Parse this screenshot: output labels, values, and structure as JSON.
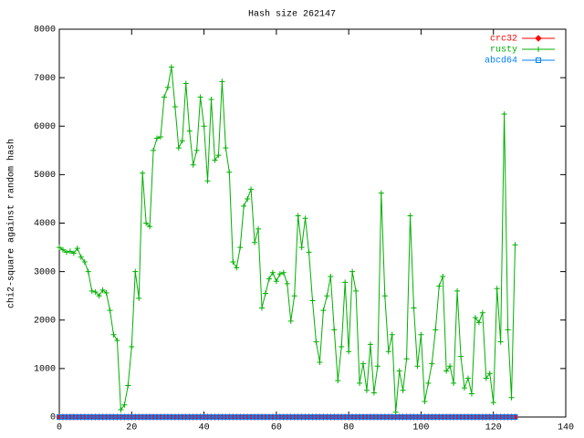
{
  "chart_data": {
    "type": "line",
    "title": "Hash size 262147",
    "y_label": "chi2-square against random hash",
    "x": [
      0,
      1,
      2,
      3,
      4,
      5,
      6,
      7,
      8,
      9,
      10,
      11,
      12,
      13,
      14,
      15,
      16,
      17,
      18,
      19,
      20,
      21,
      22,
      23,
      24,
      25,
      26,
      27,
      28,
      29,
      30,
      31,
      32,
      33,
      34,
      35,
      36,
      37,
      38,
      39,
      40,
      41,
      42,
      43,
      44,
      45,
      46,
      47,
      48,
      49,
      50,
      51,
      52,
      53,
      54,
      55,
      56,
      57,
      58,
      59,
      60,
      61,
      62,
      63,
      64,
      65,
      66,
      67,
      68,
      69,
      70,
      71,
      72,
      73,
      74,
      75,
      76,
      77,
      78,
      79,
      80,
      81,
      82,
      83,
      84,
      85,
      86,
      87,
      88,
      89,
      90,
      91,
      92,
      93,
      94,
      95,
      96,
      97,
      98,
      99,
      100,
      101,
      102,
      103,
      104,
      105,
      106,
      107,
      108,
      109,
      110,
      111,
      112,
      113,
      114,
      115,
      116,
      117,
      118,
      119,
      120,
      121,
      122,
      123,
      124,
      125,
      126
    ],
    "series": [
      {
        "name": "crc32",
        "color": "#ff0000",
        "marker": "diamond",
        "values": [
          0,
          0,
          0,
          0,
          0,
          0,
          0,
          0,
          0,
          0,
          0,
          0,
          0,
          0,
          0,
          0,
          0,
          0,
          0,
          0,
          0,
          0,
          0,
          0,
          0,
          0,
          0,
          0,
          0,
          0,
          0,
          0,
          0,
          0,
          0,
          0,
          0,
          0,
          0,
          0,
          0,
          0,
          0,
          0,
          0,
          0,
          0,
          0,
          0,
          0,
          0,
          0,
          0,
          0,
          0,
          0,
          0,
          0,
          0,
          0,
          0,
          0,
          0,
          0,
          0,
          0,
          0,
          0,
          0,
          0,
          0,
          0,
          0,
          0,
          0,
          0,
          0,
          0,
          0,
          0,
          0,
          0,
          0,
          0,
          0,
          0,
          0,
          0,
          0,
          0,
          0,
          0,
          0,
          0,
          0,
          0,
          0,
          0,
          0,
          0,
          0,
          0,
          0,
          0,
          0,
          0,
          0,
          0,
          0,
          0,
          0,
          0,
          0,
          0,
          0,
          0,
          0,
          0,
          0,
          0,
          0,
          0,
          0,
          0,
          0,
          0,
          0
        ]
      },
      {
        "name": "rusty",
        "color": "#00b000",
        "marker": "plus",
        "values": [
          3500,
          3450,
          3400,
          3420,
          3380,
          3480,
          3300,
          3200,
          3000,
          2600,
          2580,
          2500,
          2620,
          2560,
          2200,
          1700,
          1580,
          150,
          250,
          650,
          1450,
          3000,
          2450,
          5030,
          4000,
          3930,
          5500,
          5750,
          5780,
          6600,
          6800,
          7220,
          6400,
          5550,
          5700,
          6880,
          5900,
          5200,
          5500,
          6600,
          6000,
          4870,
          6550,
          5300,
          5400,
          6920,
          5550,
          5050,
          3200,
          3080,
          3500,
          4350,
          4500,
          4700,
          3600,
          3880,
          2250,
          2550,
          2850,
          2980,
          2800,
          2950,
          2980,
          2750,
          1980,
          2500,
          4150,
          3500,
          4100,
          3400,
          2400,
          1550,
          1130,
          2200,
          2500,
          2900,
          1800,
          750,
          1450,
          2780,
          1350,
          3000,
          2600,
          700,
          1100,
          550,
          1500,
          500,
          1050,
          4620,
          2500,
          1350,
          1700,
          100,
          950,
          550,
          1200,
          4150,
          2250,
          1050,
          1700,
          320,
          700,
          1100,
          1800,
          2700,
          2900,
          950,
          1050,
          700,
          2600,
          1250,
          600,
          800,
          480,
          2050,
          1950,
          2150,
          800,
          900,
          300,
          2650,
          1550,
          6250,
          1800,
          400,
          3550
        ]
      },
      {
        "name": "abcd64",
        "color": "#0080ff",
        "marker": "square",
        "values": [
          0,
          0,
          0,
          0,
          0,
          0,
          0,
          0,
          0,
          0,
          0,
          0,
          0,
          0,
          0,
          0,
          0,
          0,
          0,
          0,
          0,
          0,
          0,
          0,
          0,
          0,
          0,
          0,
          0,
          0,
          0,
          0,
          0,
          0,
          0,
          0,
          0,
          0,
          0,
          0,
          0,
          0,
          0,
          0,
          0,
          0,
          0,
          0,
          0,
          0,
          0,
          0,
          0,
          0,
          0,
          0,
          0,
          0,
          0,
          0,
          0,
          0,
          0,
          0,
          0,
          0,
          0,
          0,
          0,
          0,
          0,
          0,
          0,
          0,
          0,
          0,
          0,
          0,
          0,
          0,
          0,
          0,
          0,
          0,
          0,
          0,
          0,
          0,
          0,
          0,
          0,
          0,
          0,
          0,
          0,
          0,
          0,
          0,
          0,
          0,
          0,
          0,
          0,
          0,
          0,
          0,
          0,
          0,
          0,
          0,
          0,
          0,
          0,
          0,
          0,
          0,
          0,
          0,
          0,
          0,
          0,
          0,
          0,
          0,
          0,
          0,
          0
        ]
      }
    ],
    "xlim": [
      0,
      140
    ],
    "xticks": [
      0,
      20,
      40,
      60,
      80,
      100,
      120,
      140
    ],
    "ylim": [
      0,
      8000
    ],
    "yticks": [
      0,
      1000,
      2000,
      3000,
      4000,
      5000,
      6000,
      7000,
      8000
    ],
    "grid": false,
    "legend": "top-right"
  }
}
